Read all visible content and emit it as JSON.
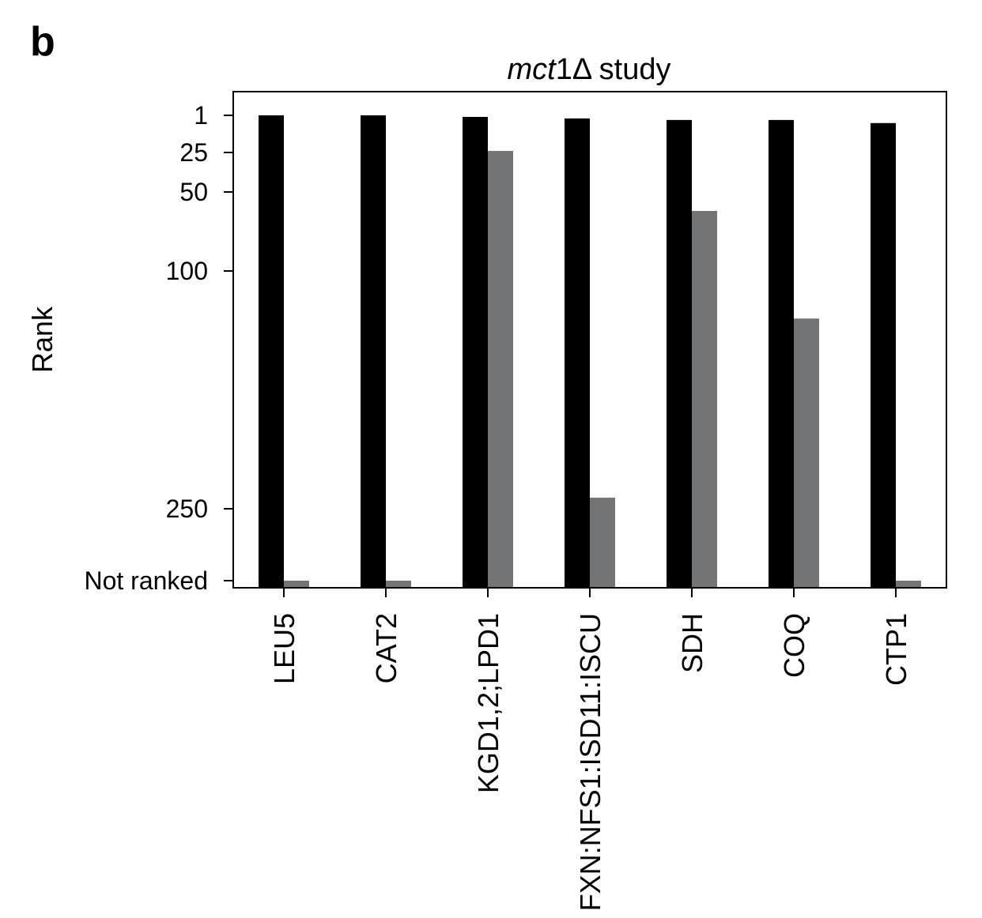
{
  "panel_label": "b",
  "chart_data": {
    "type": "bar",
    "title_italic": "mct",
    "title_rest": "1Δ study",
    "ylabel": "Rank",
    "y_axis": {
      "inverted": true,
      "ticks": [
        {
          "value": 1,
          "label": "1"
        },
        {
          "value": 25,
          "label": "25"
        },
        {
          "value": 50,
          "label": "50"
        },
        {
          "value": 100,
          "label": "100"
        },
        {
          "value": 250,
          "label": "250"
        },
        {
          "value": "not_ranked",
          "label": "Not ranked"
        }
      ]
    },
    "categories": [
      "LEU5",
      "CAT2",
      "KGD1,2;LPD1",
      "FXN:NFS1:ISD11:ISCU",
      "SDH",
      "COQ",
      "CTP1"
    ],
    "series": [
      {
        "color": "#000000",
        "values": [
          1,
          1,
          2,
          3,
          4,
          4,
          6
        ]
      },
      {
        "color": "#737476",
        "values": [
          "not_ranked",
          "not_ranked",
          24,
          243,
          62,
          130,
          "not_ranked"
        ]
      }
    ],
    "grid": false,
    "legend": "none"
  }
}
